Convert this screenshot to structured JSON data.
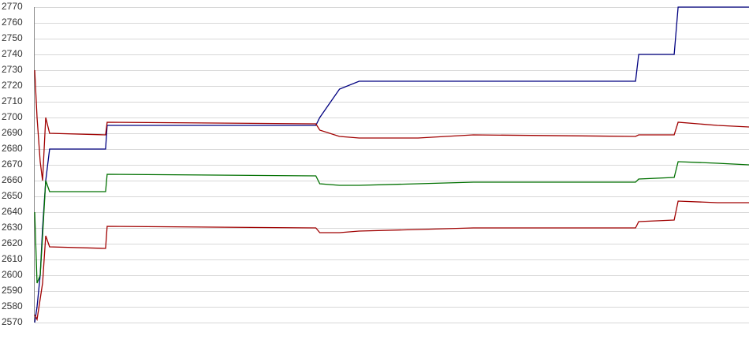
{
  "chart_data": {
    "type": "line",
    "x": [
      0,
      0.33,
      0.77,
      1.1,
      1.54,
      2.09,
      9.92,
      10.14,
      39.36,
      39.91,
      42.67,
      45.42,
      53.69,
      61.41,
      84.12,
      84.56,
      89.53,
      90.08,
      95.59,
      100
    ],
    "xlim": [
      0,
      100
    ],
    "series": [
      {
        "color": "#000080",
        "values": [
          2570,
          2580,
          2600,
          2630,
          2660,
          2680,
          2680,
          2695,
          2695,
          2700,
          2718,
          2723,
          2723,
          2723,
          2723,
          2740,
          2740,
          2770,
          2770,
          2770
        ]
      },
      {
        "color": "#a00000",
        "values": [
          2730,
          2700,
          2672,
          2660,
          2700,
          2690,
          2689,
          2697,
          2696,
          2692,
          2688,
          2687,
          2687,
          2689,
          2688,
          2689,
          2689,
          2697,
          2695,
          2694
        ]
      },
      {
        "color": "#007000",
        "values": [
          2640,
          2595,
          2600,
          2625,
          2660,
          2653,
          2653,
          2664,
          2663,
          2658,
          2657,
          2657,
          2658,
          2659,
          2659,
          2661,
          2662,
          2672,
          2671,
          2670
        ]
      },
      {
        "color": "#a00000",
        "values": [
          2575,
          2572,
          2585,
          2595,
          2625,
          2618,
          2617,
          2631,
          2630,
          2627,
          2627,
          2628,
          2629,
          2630,
          2630,
          2634,
          2635,
          2647,
          2646,
          2646
        ]
      }
    ],
    "ylim": [
      2570,
      2770
    ],
    "yticks": [
      2570,
      2580,
      2590,
      2600,
      2610,
      2620,
      2630,
      2640,
      2650,
      2660,
      2670,
      2680,
      2690,
      2700,
      2710,
      2720,
      2730,
      2740,
      2750,
      2760,
      2770
    ],
    "grid": true
  }
}
